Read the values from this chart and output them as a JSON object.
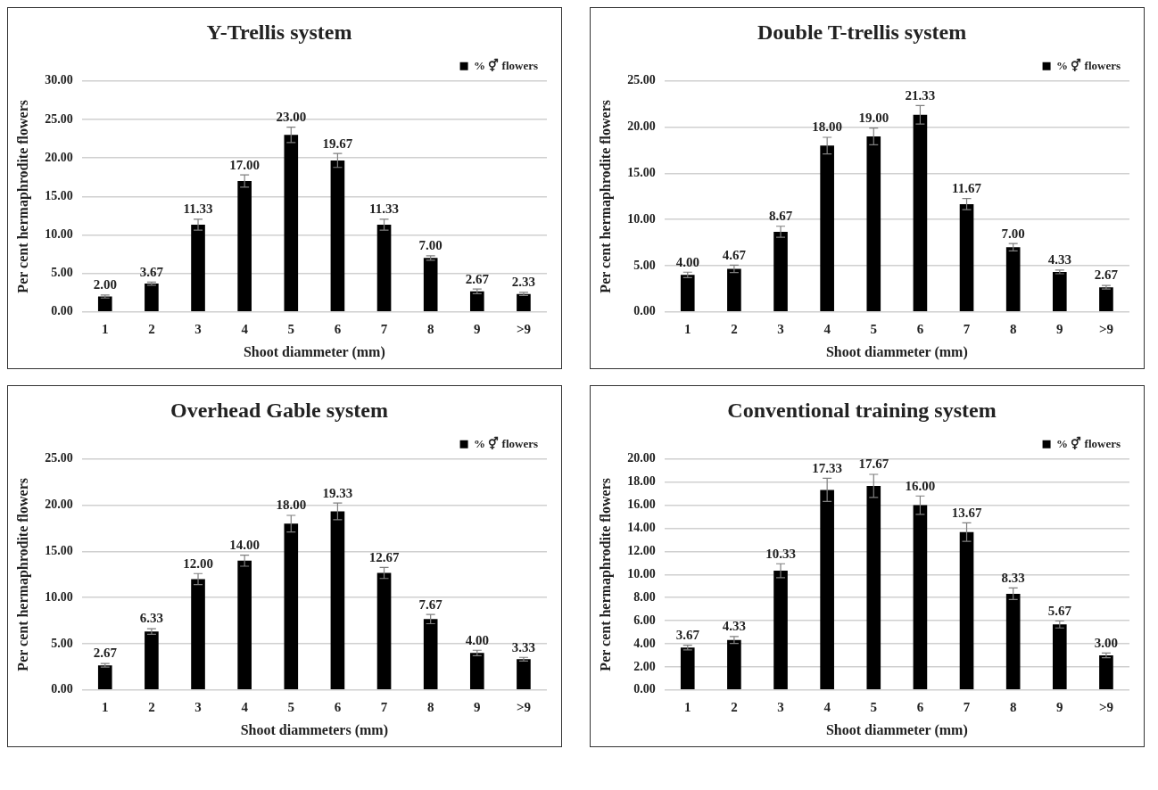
{
  "chart_data": [
    {
      "type": "bar",
      "title": "Y-Trellis system",
      "xlabel": "Shoot diammeter (mm)",
      "ylabel": "Per cent hermaphrodite flowers",
      "categories": [
        "1",
        "2",
        "3",
        "4",
        "5",
        "6",
        "7",
        "8",
        "9",
        ">9"
      ],
      "series": [
        {
          "name": "% ⚥ flowers",
          "color": "#000000",
          "values": [
            2.0,
            3.67,
            11.33,
            17.0,
            23.0,
            19.67,
            11.33,
            7.0,
            2.67,
            2.33
          ],
          "errors": [
            0.2,
            0.2,
            0.7,
            0.8,
            1.0,
            0.9,
            0.7,
            0.3,
            0.3,
            0.2
          ],
          "value_labels": [
            "2.00",
            "3.67",
            "11.33",
            "17.00",
            "23.00",
            "19.67",
            "11.33",
            "7.00",
            "2.67",
            "2.33"
          ]
        }
      ],
      "ylim": [
        0,
        30
      ],
      "yticks": [
        {
          "value": 0,
          "label": "0.00"
        },
        {
          "value": 5,
          "label": "5.00"
        },
        {
          "value": 10,
          "label": "10.00"
        },
        {
          "value": 15,
          "label": "15.00"
        },
        {
          "value": 20,
          "label": "20.00"
        },
        {
          "value": 25,
          "label": "25.00"
        },
        {
          "value": 30,
          "label": "30.00"
        }
      ],
      "grid": "y",
      "legend": "top right"
    },
    {
      "type": "bar",
      "title": "Double T-trellis system",
      "xlabel": "Shoot diammeter (mm)",
      "ylabel": "Per cent hermaphrodite flowers",
      "categories": [
        "1",
        "2",
        "3",
        "4",
        "5",
        "6",
        "7",
        "8",
        "9",
        ">9"
      ],
      "series": [
        {
          "name": "% ⚥ flowers",
          "color": "#000000",
          "values": [
            4.0,
            4.67,
            8.67,
            18.0,
            19.0,
            21.33,
            11.67,
            7.0,
            4.33,
            2.67
          ],
          "errors": [
            0.3,
            0.4,
            0.6,
            0.9,
            0.9,
            1.0,
            0.6,
            0.4,
            0.2,
            0.2
          ],
          "value_labels": [
            "4.00",
            "4.67",
            "8.67",
            "18.00",
            "19.00",
            "21.33",
            "11.67",
            "7.00",
            "4.33",
            "2.67"
          ]
        }
      ],
      "ylim": [
        0,
        25
      ],
      "yticks": [
        {
          "value": 0,
          "label": "0.00"
        },
        {
          "value": 5,
          "label": "5.00"
        },
        {
          "value": 10,
          "label": "10.00"
        },
        {
          "value": 15,
          "label": "15.00"
        },
        {
          "value": 20,
          "label": "20.00"
        },
        {
          "value": 25,
          "label": "25.00"
        }
      ],
      "grid": "y",
      "legend": "top right"
    },
    {
      "type": "bar",
      "title": "Overhead Gable system",
      "xlabel": "Shoot diammeters (mm)",
      "ylabel": "Per cent hermaphrodite flowers",
      "categories": [
        "1",
        "2",
        "3",
        "4",
        "5",
        "6",
        "7",
        "8",
        "9",
        ">9"
      ],
      "series": [
        {
          "name": "% ⚥ flowers",
          "color": "#000000",
          "values": [
            2.67,
            6.33,
            12.0,
            14.0,
            18.0,
            19.33,
            12.67,
            7.67,
            4.0,
            3.33
          ],
          "errors": [
            0.2,
            0.3,
            0.6,
            0.6,
            0.9,
            0.9,
            0.6,
            0.5,
            0.3,
            0.2
          ],
          "value_labels": [
            "2.67",
            "6.33",
            "12.00",
            "14.00",
            "18.00",
            "19.33",
            "12.67",
            "7.67",
            "4.00",
            "3.33"
          ]
        }
      ],
      "ylim": [
        0,
        25
      ],
      "yticks": [
        {
          "value": 0,
          "label": "0.00"
        },
        {
          "value": 5,
          "label": "5.00"
        },
        {
          "value": 10,
          "label": "10.00"
        },
        {
          "value": 15,
          "label": "15.00"
        },
        {
          "value": 20,
          "label": "20.00"
        },
        {
          "value": 25,
          "label": "25.00"
        }
      ],
      "grid": "y",
      "legend": "top right"
    },
    {
      "type": "bar",
      "title": "Conventional training system",
      "xlabel": "Shoot diammeter (mm)",
      "ylabel": "Per cent hermaphrodite flowers",
      "categories": [
        "1",
        "2",
        "3",
        "4",
        "5",
        "6",
        "7",
        "8",
        "9",
        ">9"
      ],
      "series": [
        {
          "name": "% ⚥ flowers",
          "color": "#000000",
          "values": [
            3.67,
            4.33,
            10.33,
            17.33,
            17.67,
            16.0,
            13.67,
            8.33,
            5.67,
            3.0
          ],
          "errors": [
            0.2,
            0.3,
            0.6,
            1.0,
            1.0,
            0.8,
            0.8,
            0.5,
            0.3,
            0.2
          ],
          "value_labels": [
            "3.67",
            "4.33",
            "10.33",
            "17.33",
            "17.67",
            "16.00",
            "13.67",
            "8.33",
            "5.67",
            "3.00"
          ]
        }
      ],
      "ylim": [
        0,
        20
      ],
      "yticks": [
        {
          "value": 0,
          "label": "0.00"
        },
        {
          "value": 2,
          "label": "2.00"
        },
        {
          "value": 4,
          "label": "4.00"
        },
        {
          "value": 6,
          "label": "6.00"
        },
        {
          "value": 8,
          "label": "8.00"
        },
        {
          "value": 10,
          "label": "10.00"
        },
        {
          "value": 12,
          "label": "12.00"
        },
        {
          "value": 14,
          "label": "14.00"
        },
        {
          "value": 16,
          "label": "16.00"
        },
        {
          "value": 18,
          "label": "18.00"
        },
        {
          "value": 20,
          "label": "20.00"
        }
      ],
      "grid": "y",
      "legend": "top right"
    }
  ]
}
